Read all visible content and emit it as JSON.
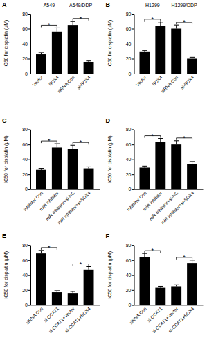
{
  "chart_data": [
    {
      "type": "bar",
      "title": "A",
      "y_label": "IC50 for cisplatin (μM)",
      "categories": [
        "Vector",
        "SOX4",
        "siRNA Con",
        "si-SOX4"
      ],
      "values": [
        26,
        56,
        65,
        15
      ],
      "errors": [
        2,
        5,
        5,
        2
      ],
      "color": "#000000",
      "ylim": [
        0,
        80
      ],
      "yticks": [
        0,
        20,
        40,
        60,
        80
      ],
      "group_labels": [
        {
          "text": "A549",
          "categories": [
            "Vector",
            "SOX4"
          ]
        },
        {
          "text": "A549/DDP",
          "categories": [
            "siRNA Con",
            "si-SOX4"
          ]
        }
      ],
      "annotations": [
        {
          "text": "*",
          "between": [
            "Vector",
            "SOX4"
          ]
        },
        {
          "text": "*",
          "between": [
            "siRNA Con",
            "si-SOX4"
          ]
        }
      ]
    },
    {
      "type": "bar",
      "title": "B",
      "y_label": "IC50 for cisplatin (μM)",
      "categories": [
        "Vector",
        "SOX4",
        "siRNA Con",
        "si-SOX4"
      ],
      "values": [
        29,
        64,
        60,
        20
      ],
      "errors": [
        2,
        5,
        5,
        2
      ],
      "color": "#000000",
      "ylim": [
        0,
        80
      ],
      "yticks": [
        0,
        20,
        40,
        60,
        80
      ],
      "group_labels": [
        {
          "text": "H1299",
          "categories": [
            "Vector",
            "SOX4"
          ]
        },
        {
          "text": "H1299/DDP",
          "categories": [
            "siRNA Con",
            "si-SOX4"
          ]
        }
      ],
      "annotations": [
        {
          "text": "*",
          "between": [
            "Vector",
            "SOX4"
          ]
        },
        {
          "text": "*",
          "between": [
            "siRNA Con",
            "si-SOX4"
          ]
        }
      ]
    },
    {
      "type": "bar",
      "title": "C",
      "y_label": "IC50 for cisplatin (μM)",
      "categories": [
        "Inhibitor Con",
        "miR inhibitor",
        "miR inhibitor+si-NC",
        "miR inhibitor+si-SOX4"
      ],
      "values": [
        26,
        56,
        54,
        28
      ],
      "errors": [
        2,
        5,
        5,
        2
      ],
      "color": "#000000",
      "ylim": [
        0,
        80
      ],
      "yticks": [
        0,
        20,
        40,
        60,
        80
      ],
      "annotations": [
        {
          "text": "*",
          "between": [
            "Inhibitor Con",
            "miR inhibitor"
          ]
        },
        {
          "text": "*",
          "between": [
            "miR inhibitor+si-NC",
            "miR inhibitor+si-SOX4"
          ]
        }
      ]
    },
    {
      "type": "bar",
      "title": "D",
      "y_label": "IC50 for cisplatin (μM)",
      "categories": [
        "Inhibitor Con",
        "miR inhibitor",
        "miR inhibitor+si-NC",
        "miR inhibitor+si-SOX4"
      ],
      "values": [
        29,
        63,
        60,
        34
      ],
      "errors": [
        2,
        5,
        5,
        3
      ],
      "color": "#000000",
      "ylim": [
        0,
        80
      ],
      "yticks": [
        0,
        20,
        40,
        60,
        80
      ],
      "annotations": [
        {
          "text": "*",
          "between": [
            "Inhibitor Con",
            "miR inhibitor"
          ]
        },
        {
          "text": "*",
          "between": [
            "miR inhibitor+si-NC",
            "miR inhibitor+si-SOX4"
          ]
        }
      ]
    },
    {
      "type": "bar",
      "title": "E",
      "y_label": "IC50 for cisplatin (μM)",
      "categories": [
        "siRNA Con",
        "si-CCAT1",
        "si-CCAT1+Vector",
        "si-CCAT1+SOX4"
      ],
      "values": [
        69,
        17,
        16,
        47
      ],
      "errors": [
        4,
        2,
        2,
        4
      ],
      "color": "#000000",
      "ylim": [
        0,
        80
      ],
      "yticks": [
        0,
        20,
        40,
        60,
        80
      ],
      "annotations": [
        {
          "text": "*",
          "between": [
            "siRNA Con",
            "si-CCAT1"
          ]
        },
        {
          "text": "*",
          "between": [
            "si-CCAT1+Vector",
            "si-CCAT1+SOX4"
          ]
        }
      ]
    },
    {
      "type": "bar",
      "title": "F",
      "y_label": "IC50 for cisplatin (μM)",
      "categories": [
        "siRNA Con",
        "si-CCAT1",
        "si-CCAT1+Vector",
        "si-CCAT1+SOX4"
      ],
      "values": [
        64,
        23,
        25,
        56
      ],
      "errors": [
        5,
        2,
        2,
        4
      ],
      "color": "#000000",
      "ylim": [
        0,
        80
      ],
      "yticks": [
        0,
        20,
        40,
        60,
        80
      ],
      "annotations": [
        {
          "text": "*",
          "between": [
            "siRNA Con",
            "si-CCAT1"
          ]
        },
        {
          "text": "*",
          "between": [
            "si-CCAT1+Vector",
            "si-CCAT1+SOX4"
          ]
        }
      ]
    }
  ]
}
